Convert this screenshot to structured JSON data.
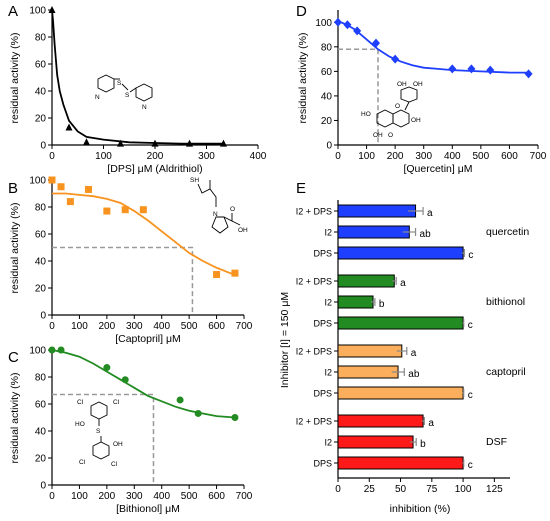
{
  "chart_data": [
    {
      "id": "A",
      "type": "scatter",
      "panel_label": "A",
      "xlabel": "[DPS] μM (Aldrithiol)",
      "ylabel": "residual activity (%)",
      "xlim": [
        0,
        400
      ],
      "ylim": [
        0,
        100
      ],
      "xticks": [
        "0",
        "100",
        "200",
        "300",
        "400"
      ],
      "yticks": [
        "0",
        "20",
        "40",
        "60",
        "80",
        "100"
      ],
      "marker": "triangle",
      "color": "#000000",
      "points": [
        {
          "x": 0,
          "y": 100
        },
        {
          "x": 33,
          "y": 13
        },
        {
          "x": 67,
          "y": 2
        },
        {
          "x": 133,
          "y": 1
        },
        {
          "x": 200,
          "y": 1
        },
        {
          "x": 267,
          "y": 1
        },
        {
          "x": 333,
          "y": 1
        }
      ],
      "fit": [
        [
          0,
          100
        ],
        [
          2,
          92
        ],
        [
          5,
          75
        ],
        [
          10,
          52
        ],
        [
          15,
          40
        ],
        [
          22,
          30
        ],
        [
          33,
          18
        ],
        [
          50,
          10
        ],
        [
          67,
          6
        ],
        [
          100,
          4
        ],
        [
          150,
          2
        ],
        [
          200,
          1.5
        ],
        [
          250,
          1
        ],
        [
          300,
          1
        ],
        [
          333,
          1
        ]
      ],
      "ref_x": null,
      "ref_y": null
    },
    {
      "id": "B",
      "type": "scatter",
      "panel_label": "B",
      "xlabel": "[Captopril] μM",
      "ylabel": "residual activity (%)",
      "xlim": [
        0,
        700
      ],
      "ylim": [
        0,
        100
      ],
      "xticks": [
        "0",
        "100",
        "200",
        "300",
        "400",
        "500",
        "600",
        "700"
      ],
      "yticks": [
        "0",
        "20",
        "40",
        "60",
        "80",
        "100"
      ],
      "marker": "square",
      "color": "#f7931e",
      "points": [
        {
          "x": 0,
          "y": 100
        },
        {
          "x": 33,
          "y": 95
        },
        {
          "x": 67,
          "y": 84
        },
        {
          "x": 133,
          "y": 93
        },
        {
          "x": 200,
          "y": 77
        },
        {
          "x": 267,
          "y": 78
        },
        {
          "x": 333,
          "y": 78
        },
        {
          "x": 600,
          "y": 30
        },
        {
          "x": 667,
          "y": 31
        }
      ],
      "fit": [
        [
          0,
          90
        ],
        [
          50,
          90
        ],
        [
          100,
          89
        ],
        [
          150,
          88
        ],
        [
          200,
          86
        ],
        [
          250,
          83
        ],
        [
          300,
          77
        ],
        [
          350,
          70
        ],
        [
          400,
          62
        ],
        [
          450,
          54
        ],
        [
          500,
          46
        ],
        [
          550,
          40
        ],
        [
          600,
          35
        ],
        [
          650,
          31
        ],
        [
          667,
          30
        ]
      ],
      "ref_x": 512,
      "ref_y": 50
    },
    {
      "id": "C",
      "type": "scatter",
      "panel_label": "C",
      "xlabel": "[Bithionol] μM",
      "ylabel": "residual activity (%)",
      "xlim": [
        0,
        700
      ],
      "ylim": [
        0,
        100
      ],
      "xticks": [
        "0",
        "100",
        "200",
        "300",
        "400",
        "500",
        "600",
        "700"
      ],
      "yticks": [
        "0",
        "20",
        "40",
        "60",
        "80",
        "100"
      ],
      "marker": "circle",
      "color": "#228b22",
      "points": [
        {
          "x": 0,
          "y": 100
        },
        {
          "x": 33,
          "y": 100
        },
        {
          "x": 200,
          "y": 87
        },
        {
          "x": 267,
          "y": 78
        },
        {
          "x": 467,
          "y": 63
        },
        {
          "x": 533,
          "y": 53
        },
        {
          "x": 667,
          "y": 50
        }
      ],
      "fit": [
        [
          0,
          100
        ],
        [
          50,
          98
        ],
        [
          100,
          95
        ],
        [
          150,
          90
        ],
        [
          200,
          84
        ],
        [
          250,
          78
        ],
        [
          300,
          72
        ],
        [
          350,
          66
        ],
        [
          400,
          62
        ],
        [
          450,
          58
        ],
        [
          500,
          55
        ],
        [
          550,
          53
        ],
        [
          600,
          51
        ],
        [
          667,
          50
        ]
      ],
      "ref_x": 370,
      "ref_y": 67
    },
    {
      "id": "D",
      "type": "scatter",
      "panel_label": "D",
      "xlabel": "[Quercetin] μM",
      "ylabel": "residual activity (%)",
      "xlim": [
        0,
        700
      ],
      "ylim": [
        0,
        110
      ],
      "xticks": [
        "0",
        "100",
        "200",
        "300",
        "400",
        "500",
        "600",
        "700"
      ],
      "yticks": [
        "0",
        "20",
        "40",
        "60",
        "80",
        "100"
      ],
      "marker": "diamond",
      "color": "#1f3fff",
      "points": [
        {
          "x": 0,
          "y": 100
        },
        {
          "x": 33,
          "y": 98
        },
        {
          "x": 67,
          "y": 93
        },
        {
          "x": 133,
          "y": 83
        },
        {
          "x": 200,
          "y": 70
        },
        {
          "x": 400,
          "y": 62
        },
        {
          "x": 467,
          "y": 62
        },
        {
          "x": 533,
          "y": 61
        },
        {
          "x": 667,
          "y": 58
        }
      ],
      "fit": [
        [
          0,
          101
        ],
        [
          30,
          98
        ],
        [
          60,
          94
        ],
        [
          100,
          86
        ],
        [
          140,
          78
        ],
        [
          180,
          72
        ],
        [
          220,
          68
        ],
        [
          260,
          65
        ],
        [
          300,
          63
        ],
        [
          350,
          62
        ],
        [
          400,
          61
        ],
        [
          500,
          60
        ],
        [
          600,
          59
        ],
        [
          667,
          59
        ]
      ],
      "ref_x": 140,
      "ref_y": 78
    },
    {
      "id": "E",
      "type": "bar",
      "orientation": "horizontal",
      "panel_label": "E",
      "xlabel": "inhibition (%)",
      "ylabel": "Inhibitor [I] = 150 μM",
      "xlim": [
        0,
        137.5
      ],
      "xticks": [
        "0",
        "25",
        "50",
        "75",
        "100",
        "125"
      ],
      "groups": [
        {
          "name": "quercetin",
          "color": "#1f3fff",
          "bars": [
            {
              "label": "I2 + DPS",
              "value": 62,
              "err": 6,
              "letter": "a"
            },
            {
              "label": "I2",
              "value": 57,
              "err": 5,
              "letter": "ab"
            },
            {
              "label": "DPS",
              "value": 100,
              "err": 1,
              "letter": "c"
            }
          ]
        },
        {
          "name": "bithionol",
          "color": "#228b22",
          "bars": [
            {
              "label": "I2 + DPS",
              "value": 45,
              "err": 1.5,
              "letter": "a"
            },
            {
              "label": "I2",
              "value": 28,
              "err": 1.5,
              "letter": "b"
            },
            {
              "label": "DPS",
              "value": 100,
              "err": 0.5,
              "letter": "c"
            }
          ]
        },
        {
          "name": "captopril",
          "color": "#fbae5c",
          "bars": [
            {
              "label": "I2 + DPS",
              "value": 51,
              "err": 4,
              "letter": "a"
            },
            {
              "label": "I2",
              "value": 48,
              "err": 5,
              "letter": "ab"
            },
            {
              "label": "DPS",
              "value": 100,
              "err": 0.5,
              "letter": "c"
            }
          ]
        },
        {
          "name": "DSF",
          "color": "#ff1a1a",
          "bars": [
            {
              "label": "I2 + DPS",
              "value": 68,
              "err": 1,
              "letter": "a"
            },
            {
              "label": "I2",
              "value": 60,
              "err": 2.5,
              "letter": "b"
            },
            {
              "label": "DPS",
              "value": 100,
              "err": 0.5,
              "letter": "c"
            }
          ]
        }
      ]
    }
  ],
  "structures": {
    "A_atoms": [
      "S",
      "S",
      "N",
      "N"
    ],
    "B_atoms": [
      "SH",
      "N",
      "O",
      "OH"
    ],
    "C_atoms": [
      "Cl",
      "Cl",
      "HO",
      "S",
      "OH",
      "Cl",
      "Cl"
    ],
    "D_atoms": [
      "OH",
      "OH",
      "HO",
      "OH",
      "O",
      "O",
      "OH"
    ]
  }
}
